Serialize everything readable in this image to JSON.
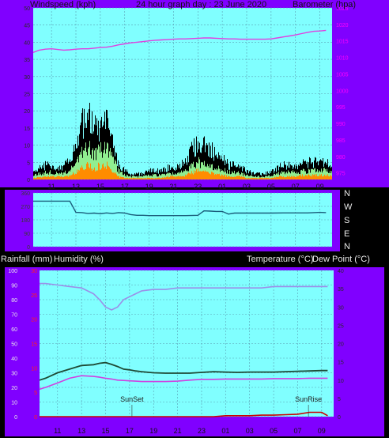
{
  "header": {
    "wind_label": "Windspeed (kph)",
    "title": "24 hour graph day : 23 June 2020",
    "baro_label": "Barometer (hpa)"
  },
  "bottom_header": {
    "rain_label": "Rainfall (mm)",
    "humidity_label": "Humidity (%)",
    "temp_label": "Temperature (°C)",
    "dew_label": "Dew Point (°C)"
  },
  "direction_letters": [
    "N",
    "W",
    "S",
    "E",
    "N"
  ],
  "markers": {
    "sunset": "SunSet",
    "sunrise": "SunRise"
  },
  "colors": {
    "frame": "#8000ff",
    "plot_bg": "#80ffff",
    "grid": "#5a9fb4",
    "barometer": "#e040e0",
    "gust": "#000000",
    "wind_avg": "#90ee90",
    "wind_min": "#ff8c00",
    "direction": "#1a5c7a",
    "humidity": "#9b8fe8",
    "temperature": "#1f4a35",
    "dewpoint": "#d040e0",
    "rain": "#cc0000",
    "right_axis_text": "#ff00ff",
    "rain_axis_text": "#ff2020"
  },
  "chart_data": [
    {
      "type": "line",
      "name": "wind-barometer",
      "title": "24 hour graph day : 23 June 2020",
      "x_ticks": [
        "11",
        "13",
        "15",
        "17",
        "19",
        "21",
        "23",
        "01",
        "03",
        "05",
        "07",
        "09"
      ],
      "y_left": {
        "label": "Windspeed (kph)",
        "range": [
          0,
          50
        ],
        "ticks": [
          "0",
          "5",
          "10",
          "15",
          "20",
          "25",
          "30",
          "35",
          "40",
          "45",
          "50"
        ]
      },
      "y_right": {
        "label": "Barometer (hpa)",
        "range": [
          973,
          1025
        ],
        "ticks": [
          "975",
          "980",
          "985",
          "990",
          "995",
          "1000",
          "1005",
          "1010",
          "1015",
          "1020",
          "1025"
        ]
      },
      "hours": [
        9.5,
        10,
        10.5,
        11,
        11.5,
        12,
        12.5,
        13,
        13.5,
        14,
        14.5,
        15,
        15.5,
        16,
        16.5,
        17,
        17.5,
        18,
        18.5,
        19,
        19.5,
        20,
        20.5,
        21,
        21.5,
        22,
        22.5,
        23,
        23.5,
        24,
        24.5,
        25,
        25.5,
        26,
        26.5,
        27,
        27.5,
        28,
        28.5,
        29,
        29.5,
        30,
        30.5,
        31,
        31.5,
        32,
        32.5,
        33,
        33.5
      ],
      "series": [
        {
          "name": "gust",
          "values": [
            3,
            4,
            5,
            5,
            4,
            5,
            6,
            14,
            19,
            21,
            18,
            17,
            19,
            12,
            5,
            3,
            2,
            2,
            2,
            3,
            3,
            3,
            4,
            4,
            5,
            6,
            11,
            13,
            12,
            11,
            8,
            7,
            5,
            5,
            4,
            3,
            2,
            2,
            2,
            3,
            4,
            5,
            5,
            5,
            6,
            6,
            6,
            7,
            6
          ]
        },
        {
          "name": "average",
          "values": [
            1.5,
            2,
            2.5,
            2.5,
            2,
            2.5,
            3,
            6,
            9,
            11,
            9,
            10,
            11,
            7,
            3,
            1.5,
            1,
            1,
            1,
            1.5,
            1.5,
            1.5,
            2,
            2,
            2.5,
            3,
            5,
            6,
            5.5,
            5,
            4,
            3.5,
            2.5,
            2.5,
            2,
            1.5,
            1,
            1,
            1,
            1.5,
            2,
            2.5,
            2.5,
            2.5,
            3,
            3,
            3,
            3.5,
            3
          ]
        },
        {
          "name": "minimum",
          "values": [
            0.5,
            1,
            1,
            1,
            1,
            1,
            1.5,
            2.5,
            4,
            5,
            4,
            5,
            5.5,
            3,
            1,
            0.5,
            0.5,
            0.5,
            0.5,
            0.5,
            0.5,
            0.5,
            1,
            1,
            1,
            1.5,
            2.5,
            3,
            2.5,
            2.5,
            2,
            1.5,
            1,
            1,
            1,
            0.5,
            0.5,
            0.5,
            0.5,
            0.5,
            1,
            1,
            1,
            1,
            1.5,
            1.5,
            1.5,
            1.5,
            1.5
          ]
        },
        {
          "name": "barometer",
          "values": [
            1011.5,
            1012.2,
            1012.5,
            1012.6,
            1012.4,
            1012.2,
            1012.3,
            1012.5,
            1012.6,
            1012.6,
            1012.8,
            1013,
            1013.1,
            1013.4,
            1013.8,
            1014.1,
            1014.4,
            1014.6,
            1014.8,
            1015,
            1015.2,
            1015.3,
            1015.4,
            1015.5,
            1015.6,
            1015.6,
            1015.7,
            1015.8,
            1015.9,
            1015.9,
            1015.8,
            1015.7,
            1015.6,
            1015.6,
            1015.5,
            1015.5,
            1015.5,
            1015.5,
            1015.5,
            1015.6,
            1015.9,
            1016.2,
            1016.5,
            1016.8,
            1017.2,
            1017.6,
            1017.9,
            1018,
            1018.2
          ]
        }
      ]
    },
    {
      "type": "line",
      "name": "wind-direction",
      "x_ticks": [
        "11",
        "13",
        "15",
        "17",
        "19",
        "21",
        "23",
        "01",
        "03",
        "05",
        "07",
        "09"
      ],
      "y_range": [
        0,
        360
      ],
      "y_ticks": [
        "0",
        "90",
        "180",
        "270",
        "360"
      ],
      "hours": [
        9.5,
        10,
        11,
        12,
        12.5,
        13,
        13.5,
        14,
        14.5,
        15,
        15.5,
        16,
        16.5,
        17,
        17.5,
        18,
        18.5,
        19,
        20,
        21,
        22,
        23,
        23.5,
        24,
        24.5,
        25,
        25.5,
        26,
        27,
        28,
        29,
        30,
        31,
        32,
        33,
        33.5
      ],
      "series": [
        {
          "name": "direction",
          "values": [
            305,
            305,
            305,
            305,
            305,
            230,
            228,
            222,
            225,
            220,
            226,
            222,
            228,
            225,
            215,
            210,
            210,
            208,
            208,
            208,
            208,
            210,
            240,
            238,
            236,
            236,
            218,
            225,
            225,
            225,
            225,
            226,
            226,
            226,
            230,
            228
          ]
        }
      ]
    },
    {
      "type": "line",
      "name": "temperature-humidity-rain",
      "x_ticks": [
        "11",
        "13",
        "15",
        "17",
        "19",
        "21",
        "23",
        "01",
        "03",
        "05",
        "07",
        "09"
      ],
      "y_left": {
        "label": "Humidity (%)",
        "range": [
          0,
          100
        ],
        "ticks": [
          "0",
          "10",
          "20",
          "30",
          "40",
          "50",
          "60",
          "70",
          "80",
          "90",
          "100"
        ]
      },
      "y_rain": {
        "label": "Rainfall (mm)",
        "range": [
          0,
          30
        ],
        "ticks": [
          "0",
          "5",
          "10",
          "15",
          "20",
          "25",
          "30"
        ]
      },
      "y_right": {
        "label": "Temperature (°C)",
        "range": [
          0,
          40
        ],
        "ticks": [
          "0",
          "5",
          "10",
          "15",
          "20",
          "25",
          "30",
          "35",
          "40"
        ]
      },
      "annotations": [
        {
          "text": "SunSet",
          "hour": 17.2
        },
        {
          "text": "SunRise",
          "hour": 31.9
        }
      ],
      "hours": [
        9.5,
        10,
        11,
        12,
        13,
        14,
        14.5,
        15,
        15.5,
        16,
        16.5,
        17,
        17.5,
        18,
        19,
        20,
        21,
        22,
        23,
        24,
        25,
        26,
        27,
        28,
        29,
        30,
        31,
        32,
        33,
        33.5
      ],
      "series": [
        {
          "name": "humidity",
          "values": [
            91,
            91,
            90,
            89,
            88,
            84,
            80,
            75,
            73,
            75,
            80,
            82,
            84,
            86,
            87,
            87,
            88,
            88,
            88,
            88,
            88,
            88,
            88,
            88,
            89,
            89,
            89,
            89,
            89,
            89
          ]
        },
        {
          "name": "temperature",
          "values": [
            10,
            10.5,
            12,
            13,
            14,
            14.2,
            14.6,
            14.8,
            14.3,
            13.7,
            13,
            12.8,
            12.5,
            12.3,
            12,
            11.9,
            11.9,
            11.9,
            12.1,
            12.3,
            12.2,
            12.1,
            12.2,
            12.2,
            12.2,
            12.3,
            12.4,
            12.5,
            12.6,
            12.6
          ]
        },
        {
          "name": "dewpoint",
          "values": [
            7.5,
            8,
            9.2,
            10.5,
            11.2,
            11,
            10.8,
            10.5,
            10.3,
            10,
            9.9,
            9.8,
            9.7,
            9.6,
            9.6,
            9.6,
            9.7,
            10,
            10.2,
            10.2,
            10.3,
            10.3,
            10.3,
            10.3,
            10.4,
            10.4,
            10.4,
            10.5,
            10.5,
            10.5
          ]
        },
        {
          "name": "rainfall",
          "values": [
            0,
            0,
            0,
            0,
            0,
            0,
            0,
            0,
            0,
            0,
            0,
            0,
            0,
            0,
            0,
            0,
            0,
            0,
            0,
            0,
            0.2,
            0.2,
            0.2,
            0.3,
            0.3,
            0.4,
            0.5,
            0.9,
            0.9,
            0.2
          ]
        }
      ]
    }
  ]
}
